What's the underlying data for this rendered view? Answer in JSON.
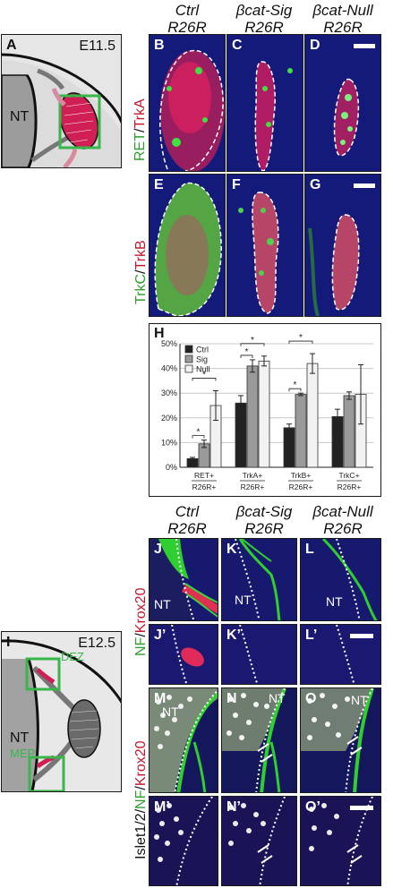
{
  "top_headers": [
    {
      "line1": "Ctrl",
      "line2": "R26R"
    },
    {
      "line1": "βcat-Sig",
      "line2": "R26R"
    },
    {
      "line1": "βcat-Null",
      "line2": "R26R"
    }
  ],
  "bottom_headers": [
    {
      "line1": "Ctrl",
      "line2": "R26R"
    },
    {
      "line1": "βcat-Sig",
      "line2": "R26R"
    },
    {
      "line1": "βcat-Null",
      "line2": "R26R"
    }
  ],
  "schematic_a": {
    "letter": "A",
    "stage": "E11.5",
    "nt": "NT"
  },
  "schematic_i": {
    "letter": "I",
    "stage": "E12.5",
    "nt": "NT",
    "dez": "DEZ",
    "mep": "MEP"
  },
  "row_labels": {
    "ret_trka": {
      "a": "RET",
      "sep": "/",
      "b": "TrkA"
    },
    "trkc_trkb": {
      "a": "TrkC",
      "sep": "/",
      "b": "TrkB"
    },
    "nf_krox": {
      "a": "NF",
      "sep": "/",
      "b": "Krox20"
    },
    "islet_nf_krox": {
      "a": "Islet1/2",
      "sep1": "/",
      "b": "NF",
      "sep2": "/",
      "c": "Krox20"
    }
  },
  "panels": {
    "B": "B",
    "C": "C",
    "D": "D",
    "E": "E",
    "F": "F",
    "G": "G",
    "J": "J",
    "K": "K",
    "L": "L",
    "J2": "J’",
    "K2": "K’",
    "L2": "L’",
    "M": "M",
    "N": "N",
    "O": "O",
    "M2": "M’",
    "N2": "N’",
    "O2": "O’"
  },
  "nt_label": "NT",
  "chart_panel_letter": "H",
  "colors": {
    "green": "#2fd12f",
    "red": "#e0233c",
    "blue": "#1a1f8c",
    "ctrl": "#222222",
    "sig": "#9a9a9a",
    "null": "#f2f2f2"
  },
  "chart_data": {
    "type": "bar",
    "title": "",
    "categories": [
      {
        "top": "RET+",
        "bottom": "R26R+"
      },
      {
        "top": "TrkA+",
        "bottom": "R26R+"
      },
      {
        "top": "TrkB+",
        "bottom": "R26R+"
      },
      {
        "top": "TrkC+",
        "bottom": "R26R+"
      }
    ],
    "series": [
      {
        "name": "Ctrl",
        "values": [
          3.5,
          26,
          16,
          20.5
        ],
        "err": [
          0.5,
          3,
          1.5,
          3
        ]
      },
      {
        "name": "Sig",
        "values": [
          9.5,
          41,
          29.5,
          29
        ],
        "err": [
          1.5,
          2.5,
          0.5,
          1.5
        ]
      },
      {
        "name": "Null",
        "values": [
          25,
          43,
          42,
          29.5
        ],
        "err": [
          6,
          2,
          4,
          12
        ]
      }
    ],
    "ylim": [
      0,
      50
    ],
    "yticks": [
      "0%",
      "10%",
      "20%",
      "30%",
      "40%",
      "50%"
    ],
    "grid": true,
    "legend": "top-left",
    "significance": [
      {
        "cat": 0,
        "a": 0,
        "b": 1,
        "label": "*"
      },
      {
        "cat": 0,
        "a": 0,
        "b": 2,
        "label": "*"
      },
      {
        "cat": 1,
        "a": 0,
        "b": 1,
        "label": "*"
      },
      {
        "cat": 1,
        "a": 0,
        "b": 2,
        "label": "*"
      },
      {
        "cat": 2,
        "a": 0,
        "b": 1,
        "label": "*"
      },
      {
        "cat": 2,
        "a": 0,
        "b": 2,
        "label": "*"
      }
    ]
  }
}
